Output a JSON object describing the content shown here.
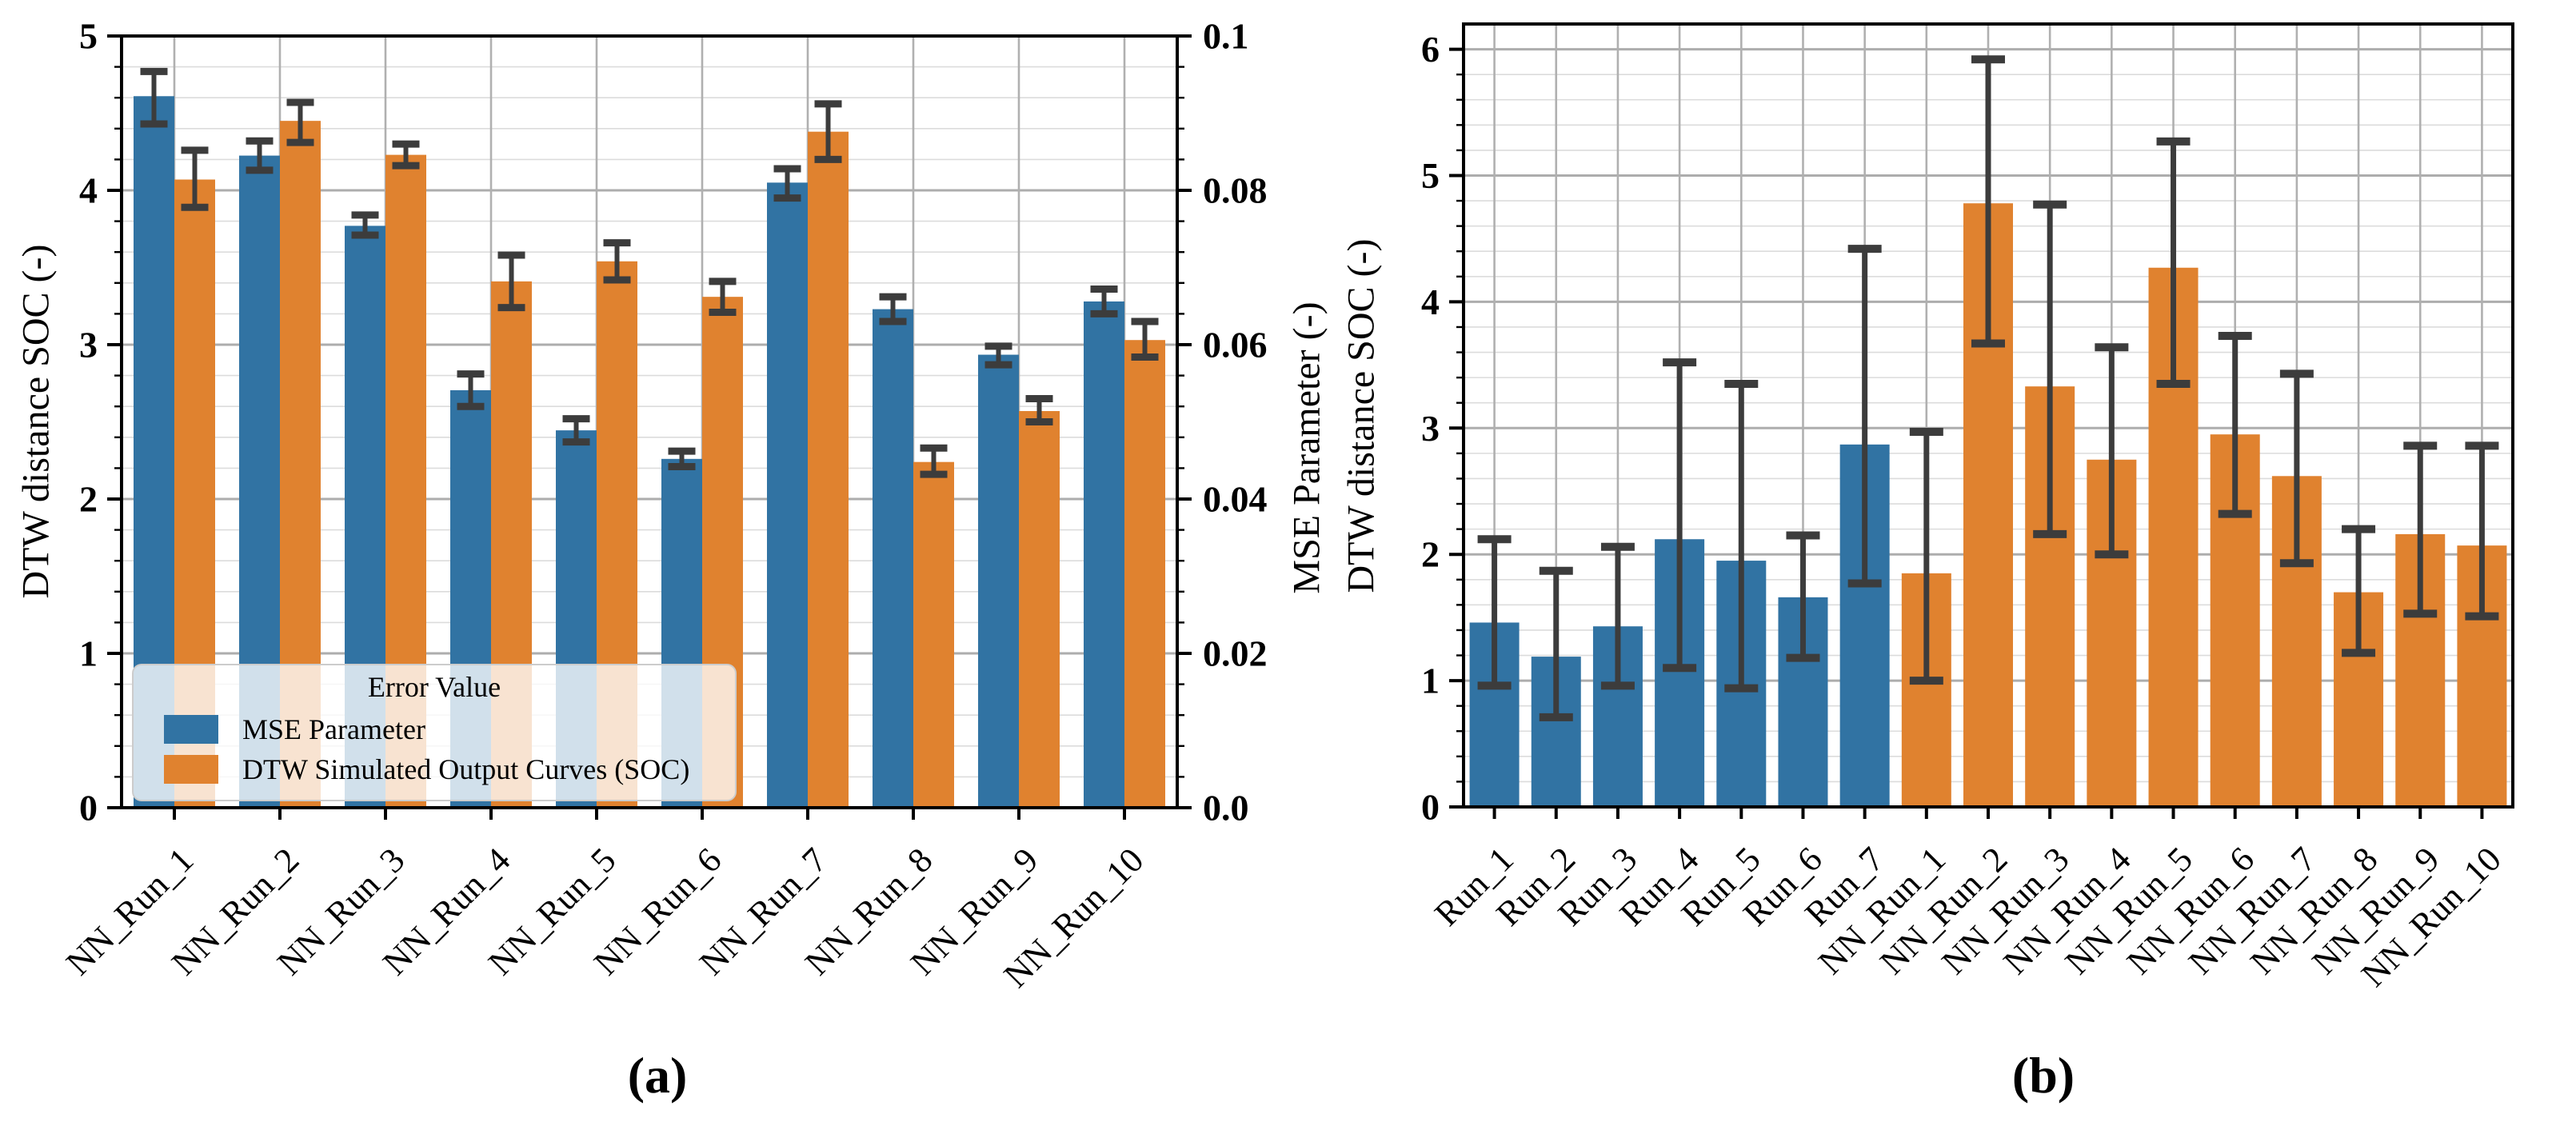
{
  "figure": {
    "description": "Two bar chart panels comparing error values across neural network runs",
    "error_bar_color": "#3C3C3C",
    "blue": "#3173A3",
    "orange": "#E0822F"
  },
  "chart_data": [
    {
      "id": "a",
      "type": "bar",
      "caption": "(a)",
      "axes": {
        "ylabel_left": "DTW distance SOC (-)",
        "ylabel_right": "MSE Parameter (-)",
        "ylim_left": [
          0,
          5
        ],
        "ylim_right": [
          0,
          0.1
        ],
        "yticks_left": [
          "0",
          "1",
          "2",
          "3",
          "4",
          "5"
        ],
        "yticks_right": [
          "0.0",
          "0.02",
          "0.04",
          "0.06",
          "0.08",
          "0.1"
        ],
        "minor_grid_step": 0.2,
        "grid": "on",
        "legend_position": "lower left"
      },
      "categories": [
        "NN_Run_1",
        "NN_Run_2",
        "NN_Run_3",
        "NN_Run_4",
        "NN_Run_5",
        "NN_Run_6",
        "NN_Run_7",
        "NN_Run_8",
        "NN_Run_9",
        "NN_Run_10"
      ],
      "legend": {
        "title": "Error Value",
        "entries": [
          {
            "label": "MSE Parameter",
            "color": "#3173A3"
          },
          {
            "label": "DTW Simulated Output Curves (SOC)",
            "color": "#E0822F"
          }
        ]
      },
      "series": [
        {
          "name": "MSE Parameter",
          "axis": "right",
          "color": "#3173A3",
          "values": [
            0.0922,
            0.0845,
            0.0754,
            0.0541,
            0.0489,
            0.0452,
            0.081,
            0.0646,
            0.0587,
            0.0656
          ],
          "err_low": [
            0.0886,
            0.0826,
            0.0742,
            0.052,
            0.0474,
            0.0442,
            0.079,
            0.063,
            0.0574,
            0.064
          ],
          "err_high": [
            0.0954,
            0.0864,
            0.0768,
            0.0562,
            0.0504,
            0.0462,
            0.0828,
            0.0662,
            0.0598,
            0.0672
          ]
        },
        {
          "name": "DTW Simulated Output Curves (SOC)",
          "axis": "left",
          "color": "#E0822F",
          "values": [
            4.07,
            4.45,
            4.23,
            3.41,
            3.54,
            3.31,
            4.38,
            2.24,
            2.57,
            3.03
          ],
          "err_low": [
            3.89,
            4.31,
            4.16,
            3.24,
            3.42,
            3.21,
            4.2,
            2.16,
            2.5,
            2.92
          ],
          "err_high": [
            4.26,
            4.57,
            4.3,
            3.58,
            3.66,
            3.41,
            4.56,
            2.33,
            2.65,
            3.15
          ]
        }
      ]
    },
    {
      "id": "b",
      "type": "bar",
      "caption": "(b)",
      "axes": {
        "ylabel_left": "DTW distance SOC (-)",
        "ylim_left": [
          0,
          6.2
        ],
        "yticks_left": [
          "0",
          "1",
          "2",
          "3",
          "4",
          "5",
          "6"
        ],
        "minor_grid_step": 0.2,
        "grid": "on"
      },
      "categories": [
        "Run_1",
        "Run_2",
        "Run_3",
        "Run_4",
        "Run_5",
        "Run_6",
        "Run_7",
        "NN_Run_1",
        "NN_Run_2",
        "NN_Run_3",
        "NN_Run_4",
        "NN_Run_5",
        "NN_Run_6",
        "NN_Run_7",
        "NN_Run_8",
        "NN_Run_9",
        "NN_Run_10"
      ],
      "series": [
        {
          "name": "DTW distance SOC",
          "axis": "left",
          "bar_colors": [
            "#3173A3",
            "#3173A3",
            "#3173A3",
            "#3173A3",
            "#3173A3",
            "#3173A3",
            "#3173A3",
            "#E0822F",
            "#E0822F",
            "#E0822F",
            "#E0822F",
            "#E0822F",
            "#E0822F",
            "#E0822F",
            "#E0822F",
            "#E0822F",
            "#E0822F"
          ],
          "values": [
            1.46,
            1.19,
            1.43,
            2.12,
            1.95,
            1.66,
            2.87,
            1.85,
            4.78,
            3.33,
            2.75,
            4.27,
            2.95,
            2.62,
            1.7,
            2.16,
            2.07
          ],
          "err_low": [
            0.96,
            0.71,
            0.96,
            1.1,
            0.94,
            1.18,
            1.77,
            1.0,
            3.67,
            2.16,
            2.0,
            3.35,
            2.32,
            1.93,
            1.22,
            1.53,
            1.51
          ],
          "err_high": [
            2.12,
            1.87,
            2.06,
            3.52,
            3.35,
            2.15,
            4.42,
            2.97,
            5.92,
            4.77,
            3.64,
            5.27,
            3.73,
            3.43,
            2.2,
            2.86,
            2.86
          ]
        }
      ]
    }
  ]
}
